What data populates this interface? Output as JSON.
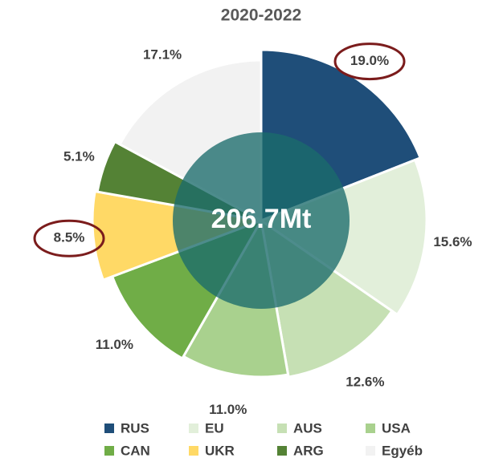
{
  "chart_data": {
    "type": "pie",
    "title": "2020-2022",
    "annotation": "206.7Mt",
    "categories": [
      "RUS",
      "EU",
      "AUS",
      "USA",
      "CAN",
      "UKR",
      "ARG",
      "Egyéb"
    ],
    "values": [
      19.0,
      15.6,
      12.6,
      11.0,
      11.0,
      8.5,
      5.1,
      17.1
    ],
    "value_labels": [
      "19.0%",
      "15.6%",
      "12.6%",
      "11.0%",
      "11.0%",
      "8.5%",
      "5.1%",
      "17.1%"
    ],
    "colors": [
      "#1f4e79",
      "#e2efda",
      "#c6e0b4",
      "#a9d18e",
      "#70ad47",
      "#ffd966",
      "#548235",
      "#f2f2f2"
    ],
    "legend": "bottom"
  }
}
